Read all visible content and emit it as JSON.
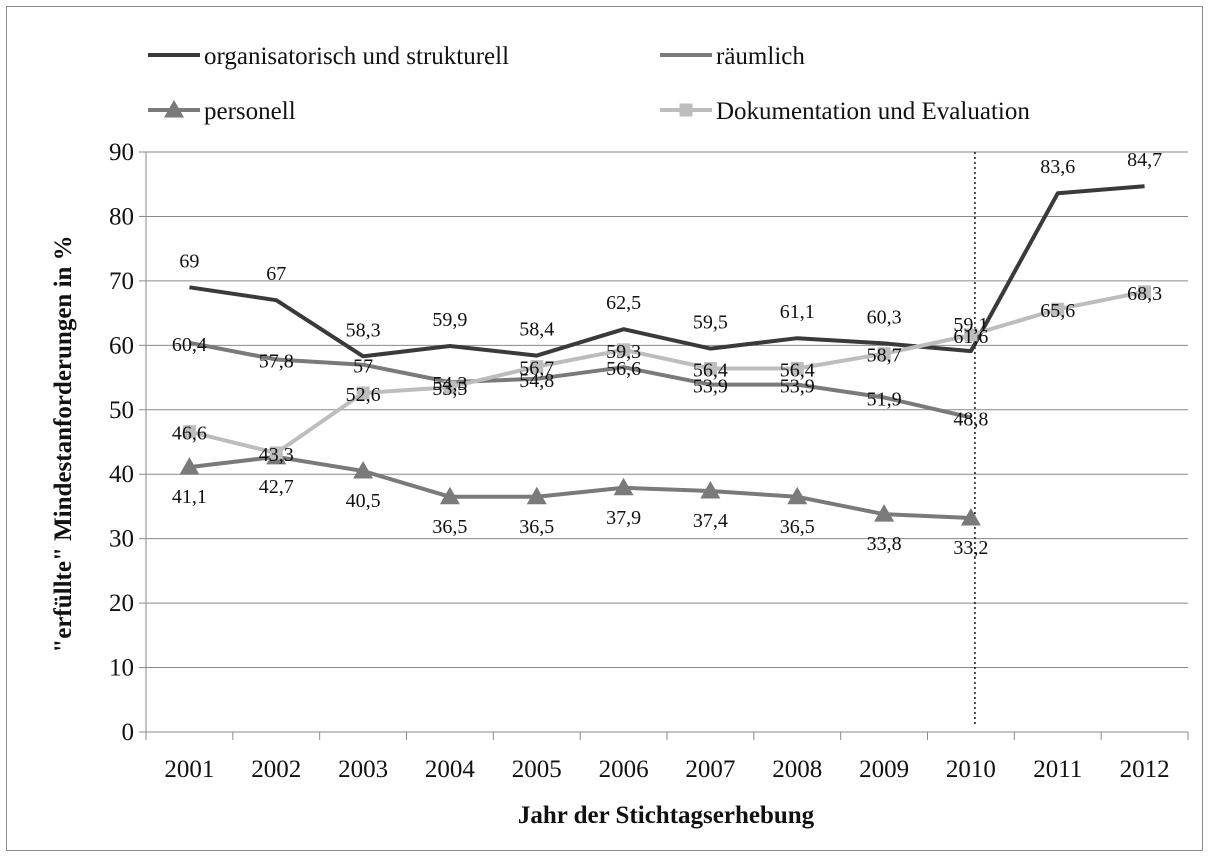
{
  "chart_data": {
    "type": "line",
    "title": "",
    "xlabel": "Jahr der Stichtagserhebung",
    "ylabel": "\"erfüllte\" Mindestanforderungen in %",
    "ylim": [
      0,
      90
    ],
    "yticks": [
      "0",
      "10",
      "20",
      "30",
      "40",
      "50",
      "60",
      "70",
      "80",
      "90"
    ],
    "categories": [
      "2001",
      "2002",
      "2003",
      "2004",
      "2005",
      "2006",
      "2007",
      "2008",
      "2009",
      "2010",
      "2011",
      "2012"
    ],
    "grid": "horizontal",
    "legend_position": "top",
    "reference_line": {
      "x": "2010",
      "style": "dotted"
    },
    "series": [
      {
        "name": "organisatorisch und strukturell",
        "color": "#3a3a3a",
        "marker": "none",
        "values": [
          69,
          67,
          58.3,
          59.9,
          58.4,
          62.5,
          59.5,
          61.1,
          60.3,
          59.1,
          83.6,
          84.7
        ],
        "labels": [
          "69",
          "67",
          "58,3",
          "59,9",
          "58,4",
          "62,5",
          "59,5",
          "61,1",
          "60,3",
          "59,1",
          "83,6",
          "84,7"
        ]
      },
      {
        "name": "räumlich",
        "color": "#7a7a7a",
        "marker": "none",
        "values": [
          60.4,
          57.8,
          57,
          54.3,
          54.8,
          56.6,
          53.9,
          53.9,
          51.9,
          48.8,
          null,
          null
        ],
        "labels": [
          "60,4",
          "57,8",
          "57",
          "54,3",
          "54,8",
          "56,6",
          "53,9",
          "53,9",
          "51,9",
          "48,8",
          "",
          ""
        ]
      },
      {
        "name": "personell",
        "color": "#7a7a7a",
        "marker": "triangle",
        "values": [
          41.1,
          42.7,
          40.5,
          36.5,
          36.5,
          37.9,
          37.4,
          36.5,
          33.8,
          33.2,
          null,
          null
        ],
        "labels": [
          "41,1",
          "42,7",
          "40,5",
          "36,5",
          "36,5",
          "37,9",
          "37,4",
          "36,5",
          "33,8",
          "33,2",
          "",
          ""
        ]
      },
      {
        "name": "Dokumentation und Evaluation",
        "color": "#bdbdbd",
        "marker": "square",
        "values": [
          46.6,
          43.3,
          52.6,
          53.5,
          56.7,
          59.3,
          56.4,
          56.4,
          58.7,
          61.6,
          65.6,
          68.3
        ],
        "labels": [
          "46,6",
          "43,3",
          "52,6",
          "53,5",
          "56,7",
          "59,3",
          "56,4",
          "56,4",
          "58,7",
          "61,6",
          "65,6",
          "68,3"
        ]
      }
    ]
  }
}
